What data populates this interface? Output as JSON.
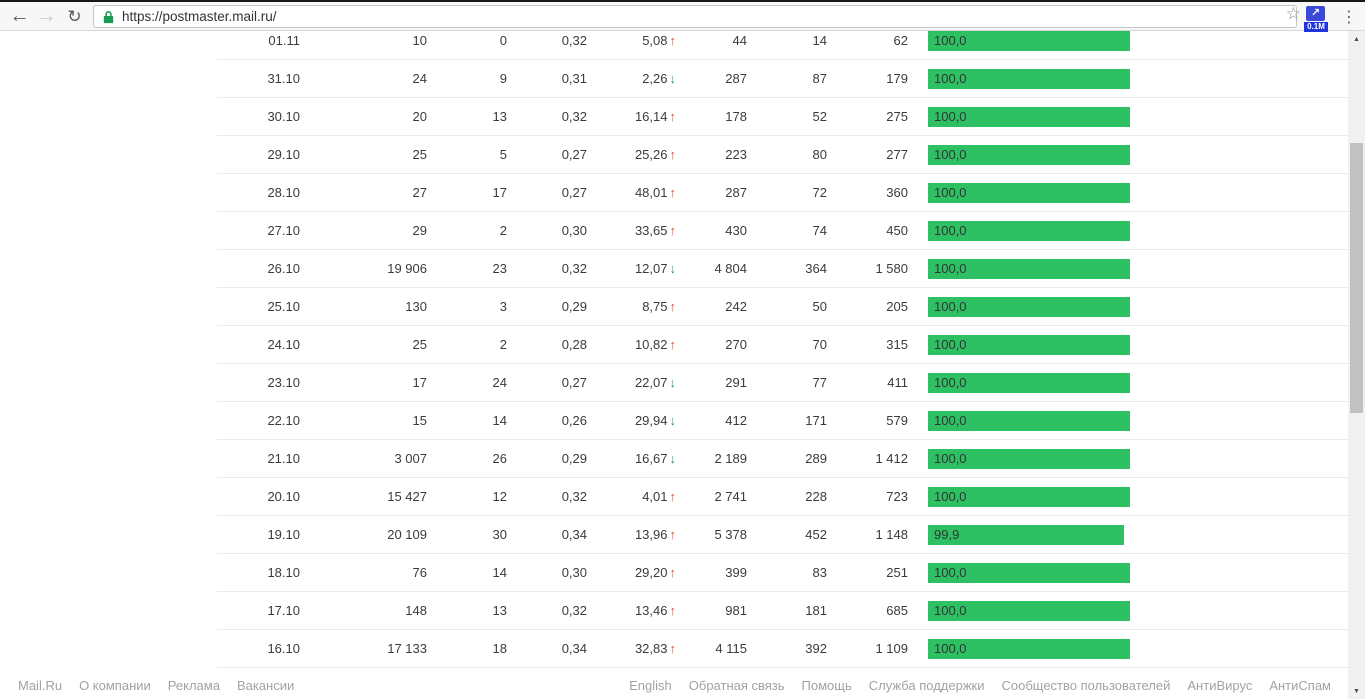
{
  "browser": {
    "url": "https://postmaster.mail.ru/",
    "extension_badge": "0.1M"
  },
  "icons": {
    "back": "←",
    "forward": "→",
    "reload": "↻",
    "star": "☆",
    "ext_arrow": "↗",
    "menu": "⋮",
    "scroll_up": "▲",
    "scroll_down": "▼",
    "trend_up": "↑",
    "trend_down": "↓"
  },
  "colors": {
    "bar_green": "#2ec164",
    "trend_up_red": "#e2502c",
    "trend_down_green": "#27a35b",
    "lock_green": "#179c52",
    "extension_blue": "#3a49d8",
    "badge_blue": "#2133db"
  },
  "stats_table": {
    "rows": [
      {
        "date": "01.11",
        "v1": "10",
        "v2": "0",
        "v3": "0,32",
        "delta": "5,08",
        "trend": "up",
        "v5": "44",
        "v6": "14",
        "v7": "62",
        "bar_label": "100,0",
        "bar_pct": 100
      },
      {
        "date": "31.10",
        "v1": "24",
        "v2": "9",
        "v3": "0,31",
        "delta": "2,26",
        "trend": "down",
        "v5": "287",
        "v6": "87",
        "v7": "179",
        "bar_label": "100,0",
        "bar_pct": 100
      },
      {
        "date": "30.10",
        "v1": "20",
        "v2": "13",
        "v3": "0,32",
        "delta": "16,14",
        "trend": "up",
        "v5": "178",
        "v6": "52",
        "v7": "275",
        "bar_label": "100,0",
        "bar_pct": 100
      },
      {
        "date": "29.10",
        "v1": "25",
        "v2": "5",
        "v3": "0,27",
        "delta": "25,26",
        "trend": "up",
        "v5": "223",
        "v6": "80",
        "v7": "277",
        "bar_label": "100,0",
        "bar_pct": 100
      },
      {
        "date": "28.10",
        "v1": "27",
        "v2": "17",
        "v3": "0,27",
        "delta": "48,01",
        "trend": "up",
        "v5": "287",
        "v6": "72",
        "v7": "360",
        "bar_label": "100,0",
        "bar_pct": 100
      },
      {
        "date": "27.10",
        "v1": "29",
        "v2": "2",
        "v3": "0,30",
        "delta": "33,65",
        "trend": "up",
        "v5": "430",
        "v6": "74",
        "v7": "450",
        "bar_label": "100,0",
        "bar_pct": 100
      },
      {
        "date": "26.10",
        "v1": "19 906",
        "v2": "23",
        "v3": "0,32",
        "delta": "12,07",
        "trend": "down",
        "v5": "4 804",
        "v6": "364",
        "v7": "1 580",
        "bar_label": "100,0",
        "bar_pct": 100
      },
      {
        "date": "25.10",
        "v1": "130",
        "v2": "3",
        "v3": "0,29",
        "delta": "8,75",
        "trend": "up",
        "v5": "242",
        "v6": "50",
        "v7": "205",
        "bar_label": "100,0",
        "bar_pct": 100
      },
      {
        "date": "24.10",
        "v1": "25",
        "v2": "2",
        "v3": "0,28",
        "delta": "10,82",
        "trend": "up",
        "v5": "270",
        "v6": "70",
        "v7": "315",
        "bar_label": "100,0",
        "bar_pct": 100
      },
      {
        "date": "23.10",
        "v1": "17",
        "v2": "24",
        "v3": "0,27",
        "delta": "22,07",
        "trend": "down",
        "v5": "291",
        "v6": "77",
        "v7": "411",
        "bar_label": "100,0",
        "bar_pct": 100
      },
      {
        "date": "22.10",
        "v1": "15",
        "v2": "14",
        "v3": "0,26",
        "delta": "29,94",
        "trend": "down",
        "v5": "412",
        "v6": "171",
        "v7": "579",
        "bar_label": "100,0",
        "bar_pct": 100
      },
      {
        "date": "21.10",
        "v1": "3 007",
        "v2": "26",
        "v3": "0,29",
        "delta": "16,67",
        "trend": "down",
        "v5": "2 189",
        "v6": "289",
        "v7": "1 412",
        "bar_label": "100,0",
        "bar_pct": 100
      },
      {
        "date": "20.10",
        "v1": "15 427",
        "v2": "12",
        "v3": "0,32",
        "delta": "4,01",
        "trend": "up",
        "v5": "2 741",
        "v6": "228",
        "v7": "723",
        "bar_label": "100,0",
        "bar_pct": 100
      },
      {
        "date": "19.10",
        "v1": "20 109",
        "v2": "30",
        "v3": "0,34",
        "delta": "13,96",
        "trend": "up",
        "v5": "5 378",
        "v6": "452",
        "v7": "1 148",
        "bar_label": "99,9",
        "bar_pct": 99.9
      },
      {
        "date": "18.10",
        "v1": "76",
        "v2": "14",
        "v3": "0,30",
        "delta": "29,20",
        "trend": "up",
        "v5": "399",
        "v6": "83",
        "v7": "251",
        "bar_label": "100,0",
        "bar_pct": 100
      },
      {
        "date": "17.10",
        "v1": "148",
        "v2": "13",
        "v3": "0,32",
        "delta": "13,46",
        "trend": "up",
        "v5": "981",
        "v6": "181",
        "v7": "685",
        "bar_label": "100,0",
        "bar_pct": 100
      },
      {
        "date": "16.10",
        "v1": "17 133",
        "v2": "18",
        "v3": "0,34",
        "delta": "32,83",
        "trend": "up",
        "v5": "4 115",
        "v6": "392",
        "v7": "1 109",
        "bar_label": "100,0",
        "bar_pct": 100
      }
    ]
  },
  "footer": {
    "left_links": [
      "Mail.Ru",
      "О компании",
      "Реклама",
      "Вакансии"
    ],
    "right_links": [
      "English",
      "Обратная связь",
      "Помощь",
      "Служба поддержки",
      "Сообщество пользователей",
      "АнтиВирус",
      "АнтиСпам"
    ]
  }
}
